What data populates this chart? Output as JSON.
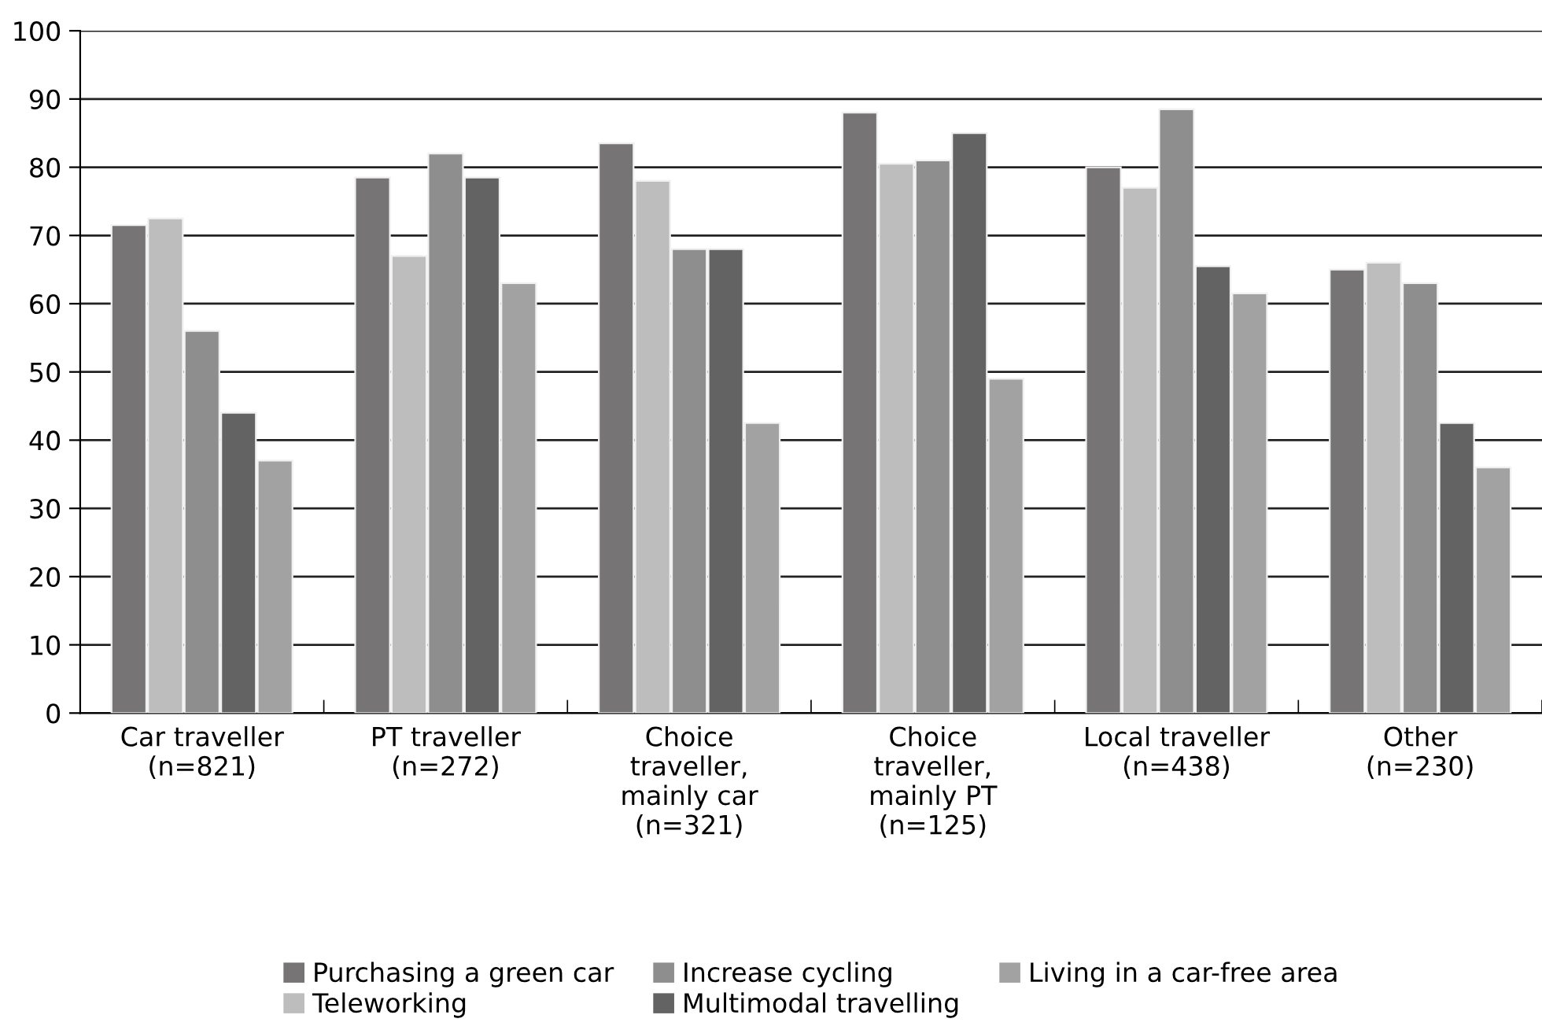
{
  "chart_data": {
    "type": "bar",
    "categories": [
      "Car traveller\n(n=821)",
      "PT traveller\n(n=272)",
      "Choice\ntraveller,\nmainly car\n(n=321)",
      "Choice\ntraveller,\nmainly PT\n(n=125)",
      "Local traveller\n(n=438)",
      "Other\n(n=230)"
    ],
    "series": [
      {
        "name": "Purchasing a green car",
        "color": "#767474",
        "values": [
          71.5,
          78.5,
          83.5,
          88,
          80,
          65
        ]
      },
      {
        "name": "Teleworking",
        "color": "#bdbdbd",
        "values": [
          72.5,
          67,
          78,
          80.5,
          77,
          66
        ]
      },
      {
        "name": "Increase cycling",
        "color": "#8f8e8e",
        "values": [
          56,
          82,
          68,
          81,
          88.5,
          63
        ]
      },
      {
        "name": "Multimodal travelling",
        "color": "#646363",
        "values": [
          44,
          78.5,
          68,
          85,
          65.5,
          42.5
        ]
      },
      {
        "name": "Living in a car-free area",
        "color": "#a2a2a2",
        "values": [
          37,
          63,
          42.5,
          49,
          61.5,
          36
        ]
      }
    ],
    "ylim": [
      0,
      100
    ],
    "yticks": [
      0,
      10,
      20,
      30,
      40,
      50,
      60,
      70,
      80,
      90,
      100
    ],
    "grid": "y",
    "legend": "bottom"
  }
}
